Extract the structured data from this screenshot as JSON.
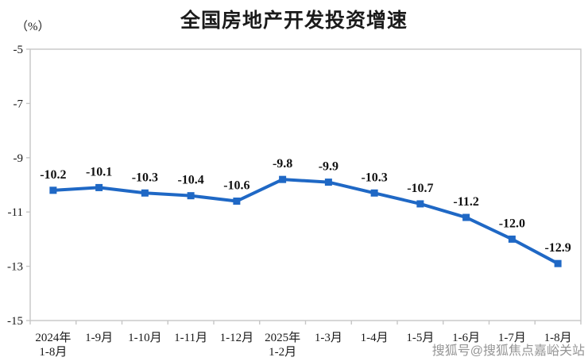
{
  "chart_data": {
    "type": "line",
    "title": "全国房地产开发投资增速",
    "ylabel": "（%）",
    "xlabel": "",
    "categories": [
      [
        "2024年",
        "1-8月"
      ],
      [
        "1-9月"
      ],
      [
        "1-10月"
      ],
      [
        "1-11月"
      ],
      [
        "1-12月"
      ],
      [
        "2025年",
        "1-2月"
      ],
      [
        "1-3月"
      ],
      [
        "1-4月"
      ],
      [
        "1-5月"
      ],
      [
        "1-6月"
      ],
      [
        "1-7月"
      ],
      [
        "1-8月"
      ]
    ],
    "series": [
      {
        "name": "全国房地产开发投资增速",
        "values": [
          -10.2,
          -10.1,
          -10.3,
          -10.4,
          -10.6,
          -9.8,
          -9.9,
          -10.3,
          -10.7,
          -11.2,
          -12.0,
          -12.9
        ]
      }
    ],
    "ylim": [
      -15,
      -5
    ],
    "yticks": [
      -5,
      -7,
      -9,
      -11,
      -13,
      -15
    ],
    "grid": false,
    "legend_position": "none",
    "marker": "square",
    "data_labels_shown": true,
    "colors": {
      "line": "#1f68c5",
      "axis": "#c6c6c6",
      "text": "#1a1a1a"
    }
  },
  "watermark": {
    "text": "搜狐号@搜狐焦点嘉峪关站"
  }
}
